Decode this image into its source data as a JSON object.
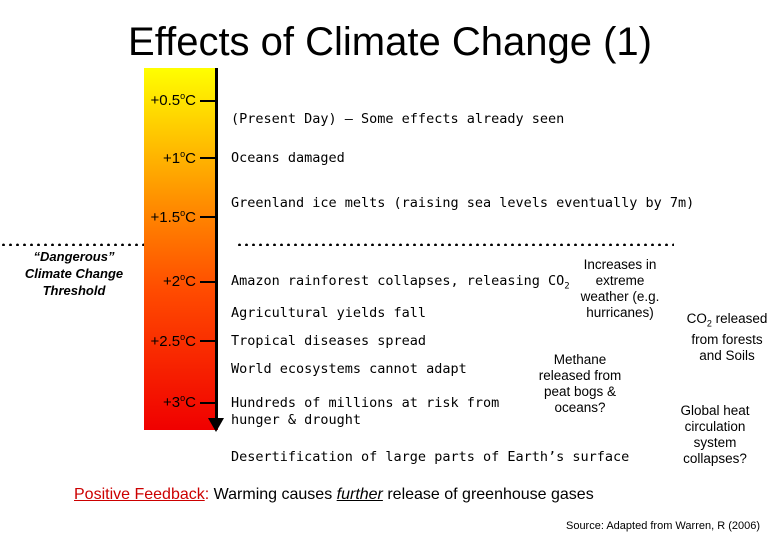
{
  "title": "Effects of Climate Change (1)",
  "temperatures": [
    "+0.5",
    "+1",
    "+1.5",
    "+2",
    "+2.5",
    "+3"
  ],
  "degree_unit": "o",
  "degree_c": "C",
  "effects": {
    "present_day": "(Present Day) – Some effects already seen",
    "oceans": "Oceans damaged",
    "greenland": "Greenland ice melts (raising sea levels eventually by 7m)",
    "amazon_text": "Amazon rainforest collapses, releasing CO",
    "amazon_sub": "2",
    "agriculture": "Agricultural yields fall",
    "tropical": "Tropical diseases spread",
    "ecosystems": "World ecosystems cannot adapt",
    "hunger_line1": "Hundreds of millions at risk from",
    "hunger_line2": "hunger & drought",
    "desertification": "Desertification of large parts of Earth’s surface"
  },
  "threshold": {
    "line1": "“Dangerous”",
    "line2": "Climate Change",
    "line3": "Threshold"
  },
  "side_notes": {
    "weather": [
      "Increases in",
      "extreme",
      "weather (e.g.",
      "hurricanes)"
    ],
    "co2_prefix": "CO",
    "co2_sub": "2",
    "co2_rest": " released",
    "co2_lines": [
      "from forests",
      "and Soils"
    ],
    "methane": [
      "Methane",
      "released from",
      "peat bogs &",
      "oceans?"
    ],
    "heat": [
      "Global heat",
      "circulation",
      "system",
      "collapses?"
    ]
  },
  "footer": {
    "pos_label": "Positive Feedback",
    "pos_colon": ":",
    "pos_text1": " Warming causes ",
    "pos_italic": "further",
    "pos_text2": " release of greenhouse gases",
    "source": "Source: Adapted from Warren, R (2006)"
  },
  "colors": {
    "thermometer_top": "#ffff00",
    "thermometer_bottom": "#f00000",
    "accent_red": "#cc0000"
  }
}
